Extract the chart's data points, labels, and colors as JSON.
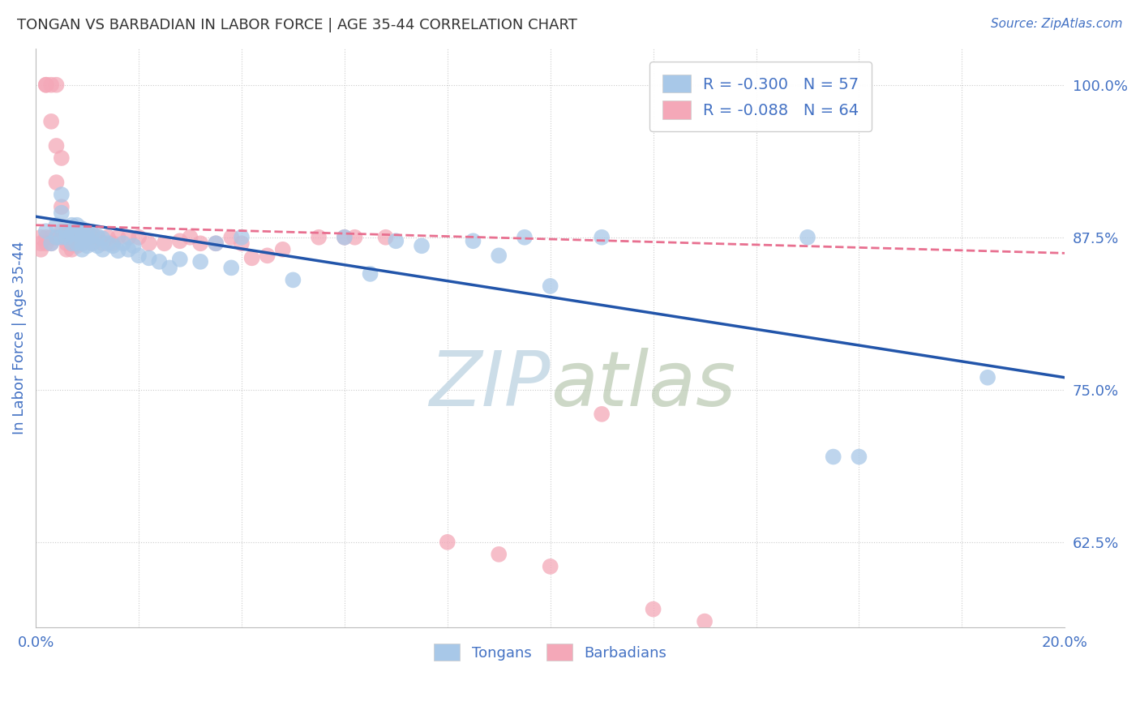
{
  "title": "TONGAN VS BARBADIAN IN LABOR FORCE | AGE 35-44 CORRELATION CHART",
  "source_text": "Source: ZipAtlas.com",
  "ylabel": "In Labor Force | Age 35-44",
  "xlim": [
    0.0,
    0.2
  ],
  "ylim": [
    0.555,
    1.03
  ],
  "yticks_right": [
    0.625,
    0.75,
    0.875,
    1.0
  ],
  "ytick_labels_right": [
    "62.5%",
    "75.0%",
    "87.5%",
    "100.0%"
  ],
  "legend_blue_r": "R = -0.300",
  "legend_blue_n": "N = 57",
  "legend_pink_r": "R = -0.088",
  "legend_pink_n": "N = 64",
  "blue_color": "#a8c8e8",
  "pink_color": "#f4a8b8",
  "blue_line_color": "#2255aa",
  "pink_line_color": "#e87090",
  "axis_color": "#4472c4",
  "grid_color": "#cccccc",
  "watermark_color": "#ccdde8",
  "blue_scatter_x": [
    0.002,
    0.003,
    0.004,
    0.004,
    0.005,
    0.005,
    0.005,
    0.006,
    0.006,
    0.007,
    0.007,
    0.007,
    0.008,
    0.008,
    0.008,
    0.009,
    0.009,
    0.009,
    0.009,
    0.01,
    0.01,
    0.01,
    0.011,
    0.011,
    0.012,
    0.012,
    0.013,
    0.013,
    0.014,
    0.015,
    0.016,
    0.017,
    0.018,
    0.019,
    0.02,
    0.022,
    0.024,
    0.026,
    0.028,
    0.032,
    0.035,
    0.038,
    0.04,
    0.05,
    0.06,
    0.065,
    0.07,
    0.075,
    0.085,
    0.09,
    0.095,
    0.1,
    0.11,
    0.15,
    0.155,
    0.16,
    0.185
  ],
  "blue_scatter_y": [
    0.88,
    0.87,
    0.885,
    0.875,
    0.91,
    0.895,
    0.875,
    0.88,
    0.875,
    0.885,
    0.878,
    0.87,
    0.885,
    0.878,
    0.87,
    0.882,
    0.876,
    0.87,
    0.865,
    0.88,
    0.875,
    0.868,
    0.878,
    0.87,
    0.876,
    0.868,
    0.874,
    0.865,
    0.87,
    0.868,
    0.864,
    0.87,
    0.865,
    0.868,
    0.86,
    0.858,
    0.855,
    0.85,
    0.857,
    0.855,
    0.87,
    0.85,
    0.875,
    0.84,
    0.875,
    0.845,
    0.872,
    0.868,
    0.872,
    0.86,
    0.875,
    0.835,
    0.875,
    0.875,
    0.695,
    0.695,
    0.76
  ],
  "pink_scatter_x": [
    0.001,
    0.001,
    0.001,
    0.002,
    0.002,
    0.002,
    0.002,
    0.003,
    0.003,
    0.003,
    0.003,
    0.004,
    0.004,
    0.004,
    0.004,
    0.005,
    0.005,
    0.005,
    0.005,
    0.006,
    0.006,
    0.006,
    0.006,
    0.007,
    0.007,
    0.007,
    0.007,
    0.008,
    0.008,
    0.008,
    0.009,
    0.009,
    0.01,
    0.01,
    0.011,
    0.011,
    0.012,
    0.013,
    0.014,
    0.015,
    0.016,
    0.018,
    0.02,
    0.022,
    0.025,
    0.028,
    0.03,
    0.032,
    0.035,
    0.038,
    0.04,
    0.042,
    0.045,
    0.048,
    0.055,
    0.06,
    0.062,
    0.068,
    0.08,
    0.09,
    0.1,
    0.11,
    0.12,
    0.13
  ],
  "pink_scatter_y": [
    0.875,
    0.87,
    0.865,
    1.0,
    1.0,
    0.875,
    0.87,
    1.0,
    0.97,
    0.875,
    0.87,
    1.0,
    0.95,
    0.92,
    0.875,
    0.94,
    0.9,
    0.88,
    0.875,
    0.88,
    0.875,
    0.87,
    0.865,
    0.88,
    0.875,
    0.87,
    0.865,
    0.88,
    0.875,
    0.868,
    0.875,
    0.87,
    0.88,
    0.875,
    0.875,
    0.87,
    0.875,
    0.87,
    0.875,
    0.87,
    0.875,
    0.875,
    0.875,
    0.87,
    0.87,
    0.872,
    0.875,
    0.87,
    0.87,
    0.875,
    0.87,
    0.858,
    0.86,
    0.865,
    0.875,
    0.875,
    0.875,
    0.875,
    0.625,
    0.615,
    0.605,
    0.73,
    0.57,
    0.56
  ],
  "blue_trendline_x0": 0.0,
  "blue_trendline_y0": 0.892,
  "blue_trendline_x1": 0.2,
  "blue_trendline_y1": 0.76,
  "pink_trendline_x0": 0.0,
  "pink_trendline_y0": 0.885,
  "pink_trendline_x1": 0.2,
  "pink_trendline_y1": 0.862
}
